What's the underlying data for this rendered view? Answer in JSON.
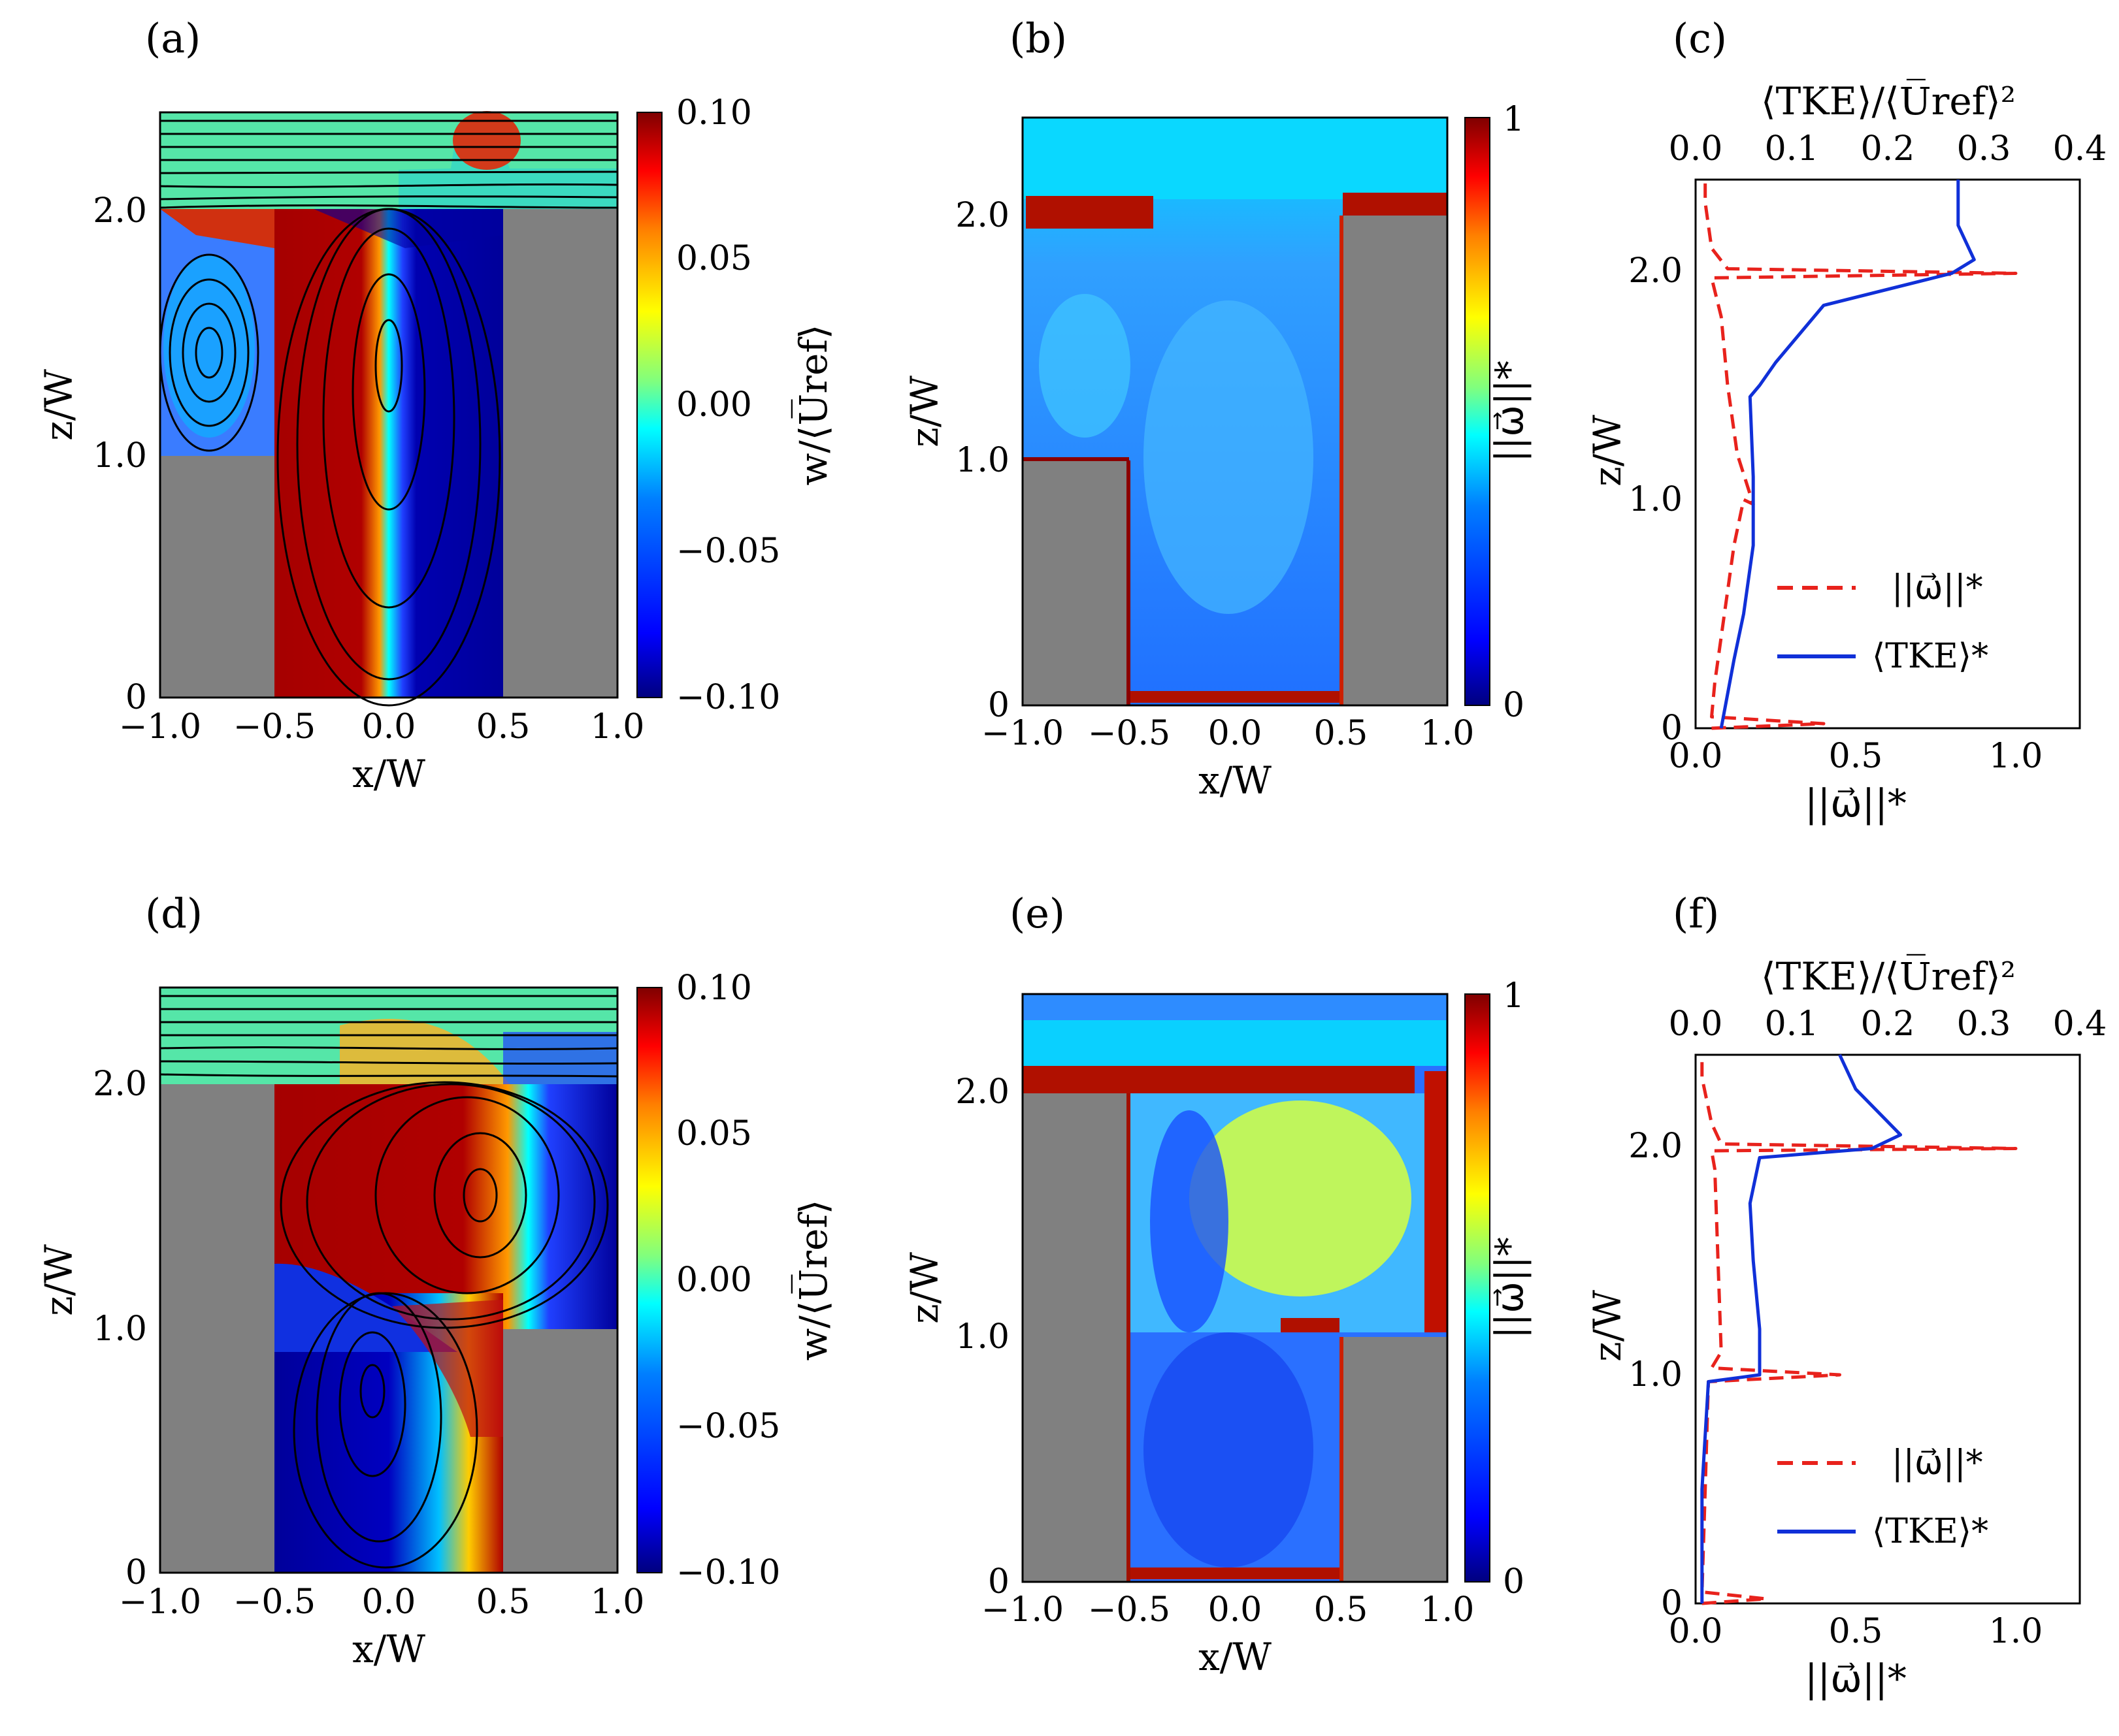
{
  "figure": {
    "colors": {
      "wall": "#808080",
      "streamline": "#000000",
      "vorticity_line": "#e8221c",
      "tke_line": "#1030d8",
      "jet": [
        "#00007f",
        "#0000ff",
        "#007fff",
        "#00ffff",
        "#7fff7f",
        "#ffff00",
        "#ff7f00",
        "#ff0000",
        "#7f0000"
      ]
    },
    "panels": [
      {
        "id": "a",
        "label": "(a)"
      },
      {
        "id": "b",
        "label": "(b)"
      },
      {
        "id": "c",
        "label": "(c)"
      },
      {
        "id": "d",
        "label": "(d)"
      },
      {
        "id": "e",
        "label": "(e)"
      },
      {
        "id": "f",
        "label": "(f)"
      }
    ]
  },
  "chart_data": [
    {
      "panel": "(a)",
      "type": "heatmap",
      "description_field": "vertical velocity with streamlines, step-up street canyon",
      "xlabel": "x/W",
      "ylabel": "z/W",
      "xlim": [
        -1.0,
        1.0
      ],
      "ylim": [
        0,
        2.4
      ],
      "xticks": [
        "−1.0",
        "−0.5",
        "0.0",
        "0.5",
        "1.0"
      ],
      "yticks": [
        "0",
        "1.0",
        "2.0"
      ],
      "geometry": {
        "upstream_building_height": 1.0,
        "downstream_building_height": 2.0,
        "canyon_x": [
          -0.5,
          0.5
        ]
      },
      "colorbar": {
        "label": "w/⟨U̅ref⟩",
        "range": [
          -0.1,
          0.1
        ],
        "ticks": [
          "0.10",
          "0.05",
          "0.00",
          "−0.05",
          "−0.10"
        ]
      },
      "vortices": [
        {
          "x": -0.8,
          "z": 1.4
        },
        {
          "x": 0.02,
          "z": 1.3
        }
      ],
      "field_regions": [
        {
          "value": 0.1,
          "x": [
            -0.5,
            -0.05
          ],
          "z": [
            0,
            1.7
          ]
        },
        {
          "value": -0.1,
          "x": [
            0.05,
            0.5
          ],
          "z": [
            0,
            1.95
          ]
        }
      ]
    },
    {
      "panel": "(b)",
      "type": "heatmap",
      "description_field": "normalised vorticity magnitude, step-up canyon",
      "xlabel": "x/W",
      "ylabel": "z/W",
      "xlim": [
        -1.0,
        1.0
      ],
      "ylim": [
        0,
        2.4
      ],
      "xticks": [
        "−1.0",
        "−0.5",
        "0.0",
        "0.5",
        "1.0"
      ],
      "yticks": [
        "0",
        "1.0",
        "2.0"
      ],
      "geometry": {
        "upstream_building_height": 1.0,
        "downstream_building_height": 2.0,
        "canyon_x": [
          -0.5,
          0.5
        ]
      },
      "colorbar": {
        "label": "||ω⃗||*",
        "range": [
          0,
          1
        ],
        "ticks": [
          "1",
          "0"
        ]
      }
    },
    {
      "panel": "(c)",
      "type": "line",
      "xlabel": "||ω⃗||*",
      "ylabel": "z/W",
      "top_xlabel": "⟨TKE⟩/⟨U̅ref⟩²",
      "xlim": [
        0,
        1.2
      ],
      "ylim": [
        0,
        2.4
      ],
      "top_xlim": [
        0,
        0.4
      ],
      "xticks": [
        "0.0",
        "0.5",
        "1.0"
      ],
      "yticks": [
        "0",
        "1.0",
        "2.0"
      ],
      "top_xticks": [
        "0.0",
        "0.1",
        "0.2",
        "0.3",
        "0.4"
      ],
      "legend": [
        "||ω⃗||*",
        "⟨TKE⟩*"
      ],
      "legend_position": "lower-right",
      "series": [
        {
          "name": "||ω⃗||*",
          "style": "dashed",
          "points": [
            [
              0.05,
              0.0
            ],
            [
              0.4,
              0.02
            ],
            [
              0.05,
              0.05
            ],
            [
              0.06,
              0.2
            ],
            [
              0.08,
              0.4
            ],
            [
              0.1,
              0.6
            ],
            [
              0.12,
              0.8
            ],
            [
              0.15,
              1.0
            ],
            [
              0.18,
              0.98
            ],
            [
              0.13,
              1.2
            ],
            [
              0.1,
              1.5
            ],
            [
              0.08,
              1.8
            ],
            [
              0.05,
              1.97
            ],
            [
              1.0,
              1.99
            ],
            [
              0.1,
              2.01
            ],
            [
              0.05,
              2.1
            ],
            [
              0.03,
              2.3
            ],
            [
              0.03,
              2.4
            ]
          ]
        },
        {
          "name": "⟨TKE⟩*",
          "style": "solid",
          "points": [
            [
              0.08,
              0.0
            ],
            [
              0.1,
              0.15
            ],
            [
              0.12,
              0.3
            ],
            [
              0.15,
              0.5
            ],
            [
              0.18,
              0.8
            ],
            [
              0.18,
              1.1
            ],
            [
              0.17,
              1.45
            ],
            [
              0.2,
              1.5
            ],
            [
              0.25,
              1.6
            ],
            [
              0.4,
              1.85
            ],
            [
              0.8,
              1.99
            ],
            [
              0.87,
              2.05
            ],
            [
              0.82,
              2.2
            ],
            [
              0.82,
              2.4
            ]
          ]
        }
      ]
    },
    {
      "panel": "(d)",
      "type": "heatmap",
      "description_field": "vertical velocity with streamlines, step-down street canyon",
      "xlabel": "x/W",
      "ylabel": "z/W",
      "xlim": [
        -1.0,
        1.0
      ],
      "ylim": [
        0,
        2.4
      ],
      "xticks": [
        "−1.0",
        "−0.5",
        "0.0",
        "0.5",
        "1.0"
      ],
      "yticks": [
        "0",
        "1.0",
        "2.0"
      ],
      "geometry": {
        "upstream_building_height": 2.0,
        "downstream_building_height": 1.0,
        "canyon_x": [
          -0.5,
          0.5
        ]
      },
      "colorbar": {
        "label": "w/⟨U̅ref⟩",
        "range": [
          -0.1,
          0.1
        ],
        "ticks": [
          "0.10",
          "0.05",
          "0.00",
          "−0.05",
          "−0.10"
        ]
      },
      "vortices": [
        {
          "x": 0.4,
          "z": 1.55
        },
        {
          "x": -0.05,
          "z": 0.75
        }
      ],
      "field_regions": [
        {
          "value": 0.1,
          "x": [
            -0.5,
            0.3
          ],
          "z": [
            1.1,
            2.0
          ]
        },
        {
          "value": -0.1,
          "x": [
            0.45,
            1.0
          ],
          "z": [
            1.05,
            2.0
          ]
        },
        {
          "value": -0.1,
          "x": [
            -0.5,
            -0.15
          ],
          "z": [
            0,
            1.3
          ]
        }
      ]
    },
    {
      "panel": "(e)",
      "type": "heatmap",
      "description_field": "normalised vorticity magnitude, step-down canyon",
      "xlabel": "x/W",
      "ylabel": "z/W",
      "xlim": [
        -1.0,
        1.0
      ],
      "ylim": [
        0,
        2.4
      ],
      "xticks": [
        "−1.0",
        "−0.5",
        "0.0",
        "0.5",
        "1.0"
      ],
      "yticks": [
        "0",
        "1.0",
        "2.0"
      ],
      "geometry": {
        "upstream_building_height": 2.0,
        "downstream_building_height": 1.0,
        "canyon_x": [
          -0.5,
          0.5
        ]
      },
      "colorbar": {
        "label": "||ω⃗||*",
        "range": [
          0,
          1
        ],
        "ticks": [
          "1",
          "0"
        ]
      }
    },
    {
      "panel": "(f)",
      "type": "line",
      "xlabel": "||ω⃗||*",
      "ylabel": "z/W",
      "top_xlabel": "⟨TKE⟩/⟨U̅ref⟩²",
      "xlim": [
        0,
        1.2
      ],
      "ylim": [
        0,
        2.4
      ],
      "top_xlim": [
        0,
        0.4
      ],
      "xticks": [
        "0.0",
        "0.5",
        "1.0"
      ],
      "yticks": [
        "0",
        "1.0",
        "2.0"
      ],
      "top_xticks": [
        "0.0",
        "0.1",
        "0.2",
        "0.3",
        "0.4"
      ],
      "legend": [
        "||ω⃗||*",
        "⟨TKE⟩*"
      ],
      "legend_position": "lower-right",
      "series": [
        {
          "name": "||ω⃗||*",
          "style": "dashed",
          "points": [
            [
              0.02,
              0.0
            ],
            [
              0.22,
              0.02
            ],
            [
              0.02,
              0.05
            ],
            [
              0.03,
              0.5
            ],
            [
              0.04,
              0.97
            ],
            [
              0.45,
              1.0
            ],
            [
              0.05,
              1.03
            ],
            [
              0.08,
              1.1
            ],
            [
              0.07,
              1.5
            ],
            [
              0.06,
              1.9
            ],
            [
              0.05,
              1.98
            ],
            [
              1.0,
              1.99
            ],
            [
              0.08,
              2.01
            ],
            [
              0.05,
              2.1
            ],
            [
              0.02,
              2.3
            ],
            [
              0.02,
              2.4
            ]
          ]
        },
        {
          "name": "⟨TKE⟩*",
          "style": "solid",
          "points": [
            [
              0.02,
              0.0
            ],
            [
              0.02,
              0.5
            ],
            [
              0.04,
              0.97
            ],
            [
              0.2,
              1.0
            ],
            [
              0.2,
              1.2
            ],
            [
              0.18,
              1.5
            ],
            [
              0.17,
              1.75
            ],
            [
              0.2,
              1.95
            ],
            [
              0.55,
              1.99
            ],
            [
              0.64,
              2.05
            ],
            [
              0.5,
              2.25
            ],
            [
              0.45,
              2.4
            ]
          ]
        }
      ]
    }
  ]
}
